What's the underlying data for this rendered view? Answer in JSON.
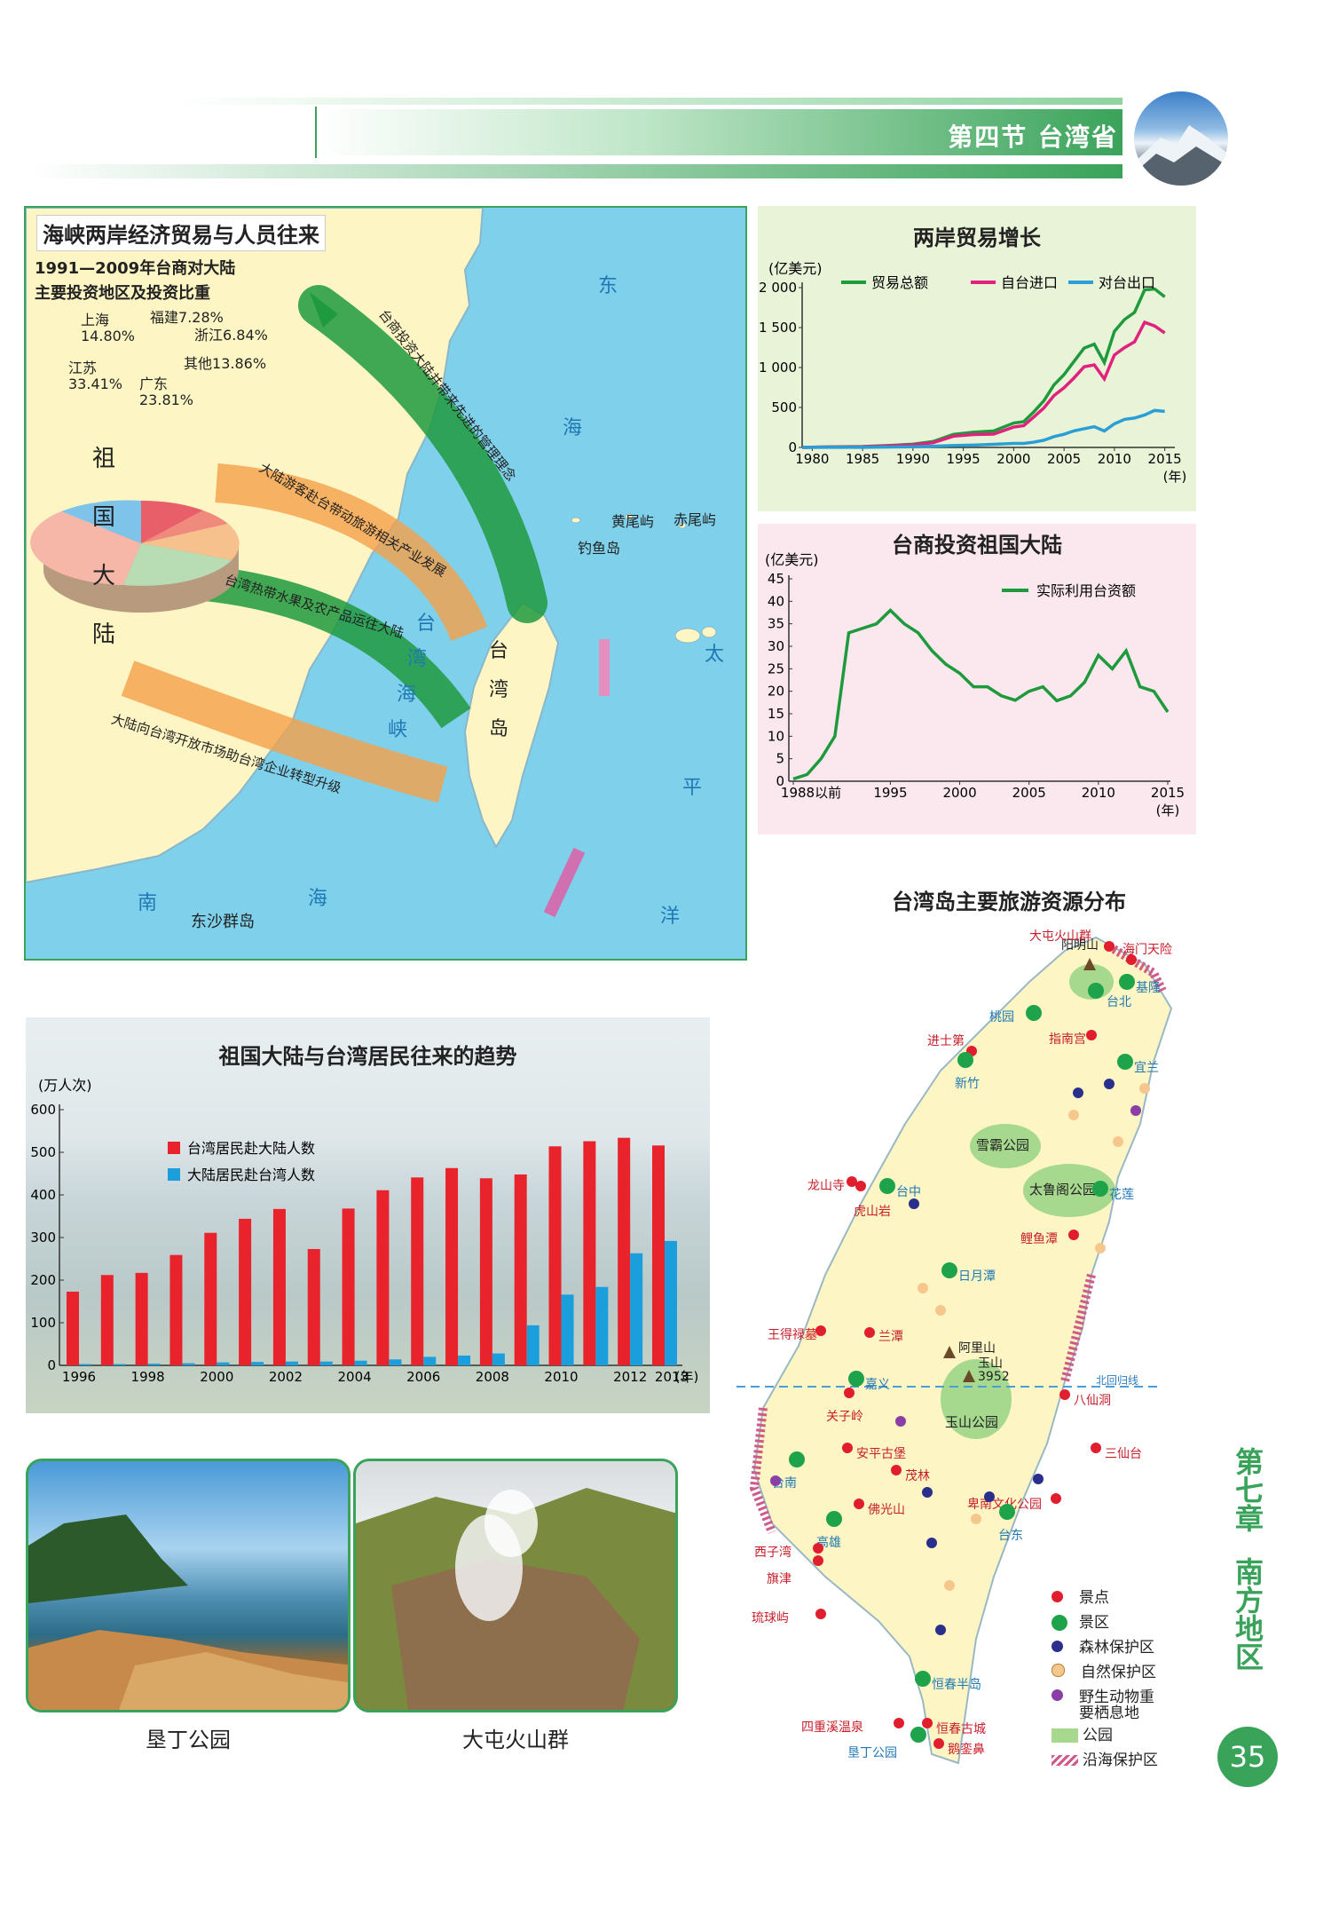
{
  "header": {
    "section_title": "第四节 台湾省",
    "theme_green": "#3aa35a",
    "light_green": "#a9dcb8"
  },
  "side_tab": {
    "chapter": "第七章",
    "part": "南方地区"
  },
  "page_number": "35",
  "strait_map": {
    "title": "海峡两岸经济贸易与人员往来",
    "pie_title_line1": "1991—2009年台商对大陆",
    "pie_title_line2": "主要投资地区及投资比重",
    "pie_labels": [
      {
        "name": "上海",
        "value": "14.80%"
      },
      {
        "name": "福建",
        "value": "7.28%"
      },
      {
        "name": "浙江",
        "value": "6.84%"
      },
      {
        "name": "其他",
        "value": "13.86%"
      },
      {
        "name": "广东",
        "value": "23.81%"
      },
      {
        "name": "江苏",
        "value": "33.41%"
      }
    ],
    "mainland_label": [
      "祖",
      "国",
      "大",
      "陆"
    ],
    "taiwan_label": [
      "台",
      "湾",
      "岛"
    ],
    "strait_label": [
      "台",
      "湾",
      "海",
      "峡"
    ],
    "sea_labels": {
      "east": [
        "东",
        "海"
      ],
      "pacific": [
        "太",
        "平",
        "洋"
      ],
      "south": [
        "南",
        "海"
      ]
    },
    "islands": {
      "huangwei": "黄尾屿",
      "chiwei": "赤尾屿",
      "diaoyu": "钓鱼岛",
      "dongsha": "东沙群岛"
    },
    "arrows": [
      "台商投资大陆并带来先进的管理理念",
      "大陆游客赴台带动旅游相关产业发展",
      "台湾热带水果及农产品运往大陆",
      "大陆向台湾开放市场助台湾企业转型升级"
    ]
  },
  "trade_chart": {
    "title": "两岸贸易增长",
    "unit": "(亿美元)",
    "year_unit": "(年)",
    "x_ticks": [
      "1980",
      "1985",
      "1990",
      "1995",
      "2000",
      "2005",
      "2010",
      "2015"
    ],
    "y_ticks": [
      "0",
      "500",
      "1 000",
      "1 500",
      "2 000"
    ],
    "legend": [
      "贸易总额",
      "自台进口",
      "对台出口"
    ]
  },
  "invest_chart": {
    "title": "台商投资祖国大陆",
    "unit": "(亿美元)",
    "year_unit": "(年)",
    "x_ticks": [
      "1988以前",
      "1995",
      "2000",
      "2005",
      "2010",
      "2015"
    ],
    "y_ticks": [
      "0",
      "5",
      "10",
      "15",
      "20",
      "25",
      "30",
      "35",
      "40",
      "45"
    ],
    "legend": [
      "实际利用台资额"
    ]
  },
  "flow_chart": {
    "title": "祖国大陆与台湾居民往来的趋势",
    "unit": "(万人次)",
    "year_unit": "(年)",
    "y_ticks": [
      "0",
      "100",
      "200",
      "300",
      "400",
      "500",
      "600"
    ],
    "x_ticks": [
      "1996",
      "1998",
      "2000",
      "2002",
      "2004",
      "2006",
      "2008",
      "2010",
      "2012",
      "2013"
    ],
    "legend": [
      "台湾居民赴大陆人数",
      "大陆居民赴台湾人数"
    ]
  },
  "photos": [
    {
      "caption": "垦丁公园"
    },
    {
      "caption": "大屯火山群"
    }
  ],
  "tourism_map": {
    "title": "台湾岛主要旅游资源分布",
    "tropic_label": "北回归线",
    "peak_yushan": "玉山",
    "peak_yushan_height": "3952",
    "peak_alishan": "阿里山",
    "peak_yangming": "阳明山",
    "parks": [
      "雪霸公园",
      "太鲁阁公园",
      "玉山公园",
      "阳明山公园"
    ],
    "places": [
      "大屯火山群",
      "海门天险",
      "基隆",
      "台北",
      "桃园",
      "指南宫",
      "进士第",
      "新竹",
      "宜兰",
      "龙山寺",
      "台中",
      "虎山岩",
      "花莲",
      "鲤鱼潭",
      "日月潭",
      "王得禄墓",
      "兰潭",
      "嘉义",
      "关子岭",
      "八仙洞",
      "安平古堡",
      "台南",
      "三仙台",
      "茂林",
      "卑南文化公园",
      "佛光山",
      "台东",
      "高雄",
      "西子湾",
      "旗津",
      "琉球屿",
      "恒春半岛",
      "四重溪温泉",
      "恒春古城",
      "垦丁公园",
      "鹅銮鼻"
    ],
    "legend": [
      "景点",
      "景区",
      "森林保护区",
      "自然保护区",
      "野生动物重要栖息地",
      "公园",
      "沿海保护区"
    ]
  },
  "chart_data": [
    {
      "type": "line",
      "title": "两岸贸易增长",
      "ylabel": "(亿美元)",
      "xlabel": "(年)",
      "ylim": [
        0,
        2000
      ],
      "xlim": [
        1979,
        2016
      ],
      "series": [
        {
          "name": "贸易总额",
          "color": "#1e9a3c",
          "x": [
            1979,
            1981,
            1985,
            1988,
            1990,
            1992,
            1994,
            1996,
            1998,
            2000,
            2001,
            2002,
            2003,
            2004,
            2005,
            2006,
            2007,
            2008,
            2009,
            2010,
            2011,
            2012,
            2013,
            2014,
            2015
          ],
          "y": [
            0,
            5,
            11,
            27,
            40,
            74,
            163,
            190,
            205,
            305,
            323,
            446,
            584,
            783,
            912,
            1079,
            1244,
            1292,
            1063,
            1453,
            1600,
            1690,
            1972,
            1983,
            1885
          ]
        },
        {
          "name": "自台进口",
          "color": "#e0227e",
          "x": [
            1979,
            1981,
            1985,
            1988,
            1990,
            1992,
            1994,
            1996,
            1998,
            2000,
            2001,
            2002,
            2003,
            2004,
            2005,
            2006,
            2007,
            2008,
            2009,
            2010,
            2011,
            2012,
            2013,
            2014,
            2015
          ],
          "y": [
            0,
            4,
            9,
            22,
            32,
            59,
            140,
            161,
            166,
            255,
            273,
            381,
            494,
            648,
            747,
            871,
            1010,
            1033,
            857,
            1157,
            1249,
            1322,
            1566,
            1520,
            1433
          ]
        },
        {
          "name": "对台出口",
          "color": "#2a9fd6",
          "x": [
            1979,
            1981,
            1985,
            1988,
            1990,
            1992,
            1994,
            1996,
            1998,
            2000,
            2001,
            2002,
            2003,
            2004,
            2005,
            2006,
            2007,
            2008,
            2009,
            2010,
            2011,
            2012,
            2013,
            2014,
            2015
          ],
          "y": [
            0,
            1,
            2,
            5,
            8,
            15,
            23,
            29,
            39,
            50,
            50,
            66,
            90,
            135,
            165,
            208,
            234,
            259,
            206,
            296,
            351,
            368,
            406,
            463,
            452
          ]
        }
      ]
    },
    {
      "type": "line",
      "title": "台商投资祖国大陆",
      "ylabel": "(亿美元)",
      "xlabel": "(年)",
      "ylim": [
        0,
        45
      ],
      "categories": [
        "1988以前",
        "1989",
        "1990",
        "1991",
        "1992",
        "1993",
        "1994",
        "1995",
        "1996",
        "1997",
        "1998",
        "1999",
        "2000",
        "2001",
        "2002",
        "2003",
        "2004",
        "2005",
        "2006",
        "2007",
        "2008",
        "2009",
        "2010",
        "2011",
        "2012",
        "2013",
        "2014",
        "2015"
      ],
      "series": [
        {
          "name": "实际利用台资额",
          "color": "#1e9a3c",
          "values": [
            0.5,
            1.5,
            5,
            10,
            33,
            34,
            35,
            38,
            35,
            33,
            29,
            26,
            24,
            21,
            21,
            19,
            18,
            20,
            21,
            17.9,
            19,
            22,
            28,
            25,
            29,
            21,
            20,
            15.4
          ]
        }
      ]
    },
    {
      "type": "bar",
      "title": "祖国大陆与台湾居民往来的趋势",
      "ylabel": "(万人次)",
      "xlabel": "(年)",
      "ylim": [
        0,
        600
      ],
      "categories": [
        "1996",
        "1997",
        "1998",
        "1999",
        "2000",
        "2001",
        "2002",
        "2003",
        "2004",
        "2005",
        "2006",
        "2007",
        "2008",
        "2009",
        "2010",
        "2011",
        "2012",
        "2013"
      ],
      "series": [
        {
          "name": "台湾居民赴大陆人数",
          "color": "#e8232b",
          "values": [
            173,
            212,
            217,
            259,
            311,
            344,
            367,
            273,
            368,
            411,
            441,
            463,
            439,
            448,
            514,
            526,
            534,
            516
          ]
        },
        {
          "name": "大陆居民赴台湾人数",
          "color": "#1a9fdc",
          "values": [
            3,
            3,
            4,
            5,
            7,
            8,
            9,
            9,
            11,
            14,
            20,
            23,
            28,
            94,
            166,
            184,
            263,
            292
          ]
        }
      ]
    }
  ]
}
